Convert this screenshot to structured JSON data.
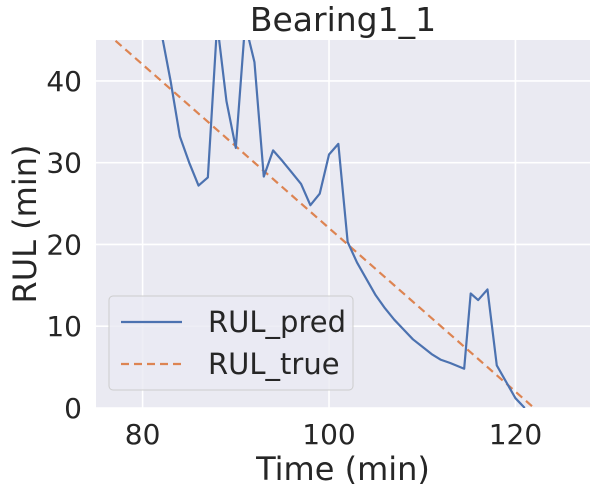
{
  "chart_data": {
    "type": "line",
    "title": "Bearing1_1",
    "xlabel": "Time (min)",
    "ylabel": "RUL (min)",
    "xlim": [
      75,
      128
    ],
    "ylim": [
      0,
      45
    ],
    "xticks": [
      80,
      100,
      120
    ],
    "yticks": [
      0,
      10,
      20,
      30,
      40
    ],
    "grid": true,
    "legend_position": "lower-left",
    "colors": {
      "background": "#eaeaf2",
      "grid": "#ffffff",
      "RUL_pred": "#4c72b0",
      "RUL_true": "#dd8452"
    },
    "series": [
      {
        "name": "RUL_pred",
        "style": "solid",
        "x": [
          82.0,
          83.0,
          84.0,
          85.0,
          86.0,
          87.0,
          88.0,
          89.0,
          90.0,
          91.0,
          92.0,
          93.0,
          94.0,
          95.0,
          96.0,
          97.0,
          98.0,
          99.0,
          100.0,
          101.0,
          102.0,
          103.0,
          104.0,
          105.0,
          106.0,
          107.0,
          108.0,
          109.0,
          110.0,
          111.0,
          112.0,
          113.0,
          114.5,
          115.2,
          116.0,
          117.0,
          118.0,
          119.0,
          120.0,
          121.0
        ],
        "y": [
          46.0,
          40.0,
          33.2,
          30.0,
          27.2,
          28.2,
          47.0,
          37.5,
          31.8,
          47.0,
          42.3,
          28.3,
          31.5,
          30.2,
          28.8,
          27.4,
          24.8,
          26.2,
          31.0,
          32.3,
          20.3,
          17.8,
          15.8,
          13.8,
          12.2,
          10.8,
          9.6,
          8.4,
          7.5,
          6.6,
          5.9,
          5.5,
          4.8,
          14.0,
          13.2,
          14.5,
          5.2,
          3.2,
          1.2,
          0.0
        ]
      },
      {
        "name": "RUL_true",
        "style": "dashed",
        "x": [
          75.0,
          122.0
        ],
        "y": [
          47.0,
          0.0
        ]
      }
    ]
  }
}
